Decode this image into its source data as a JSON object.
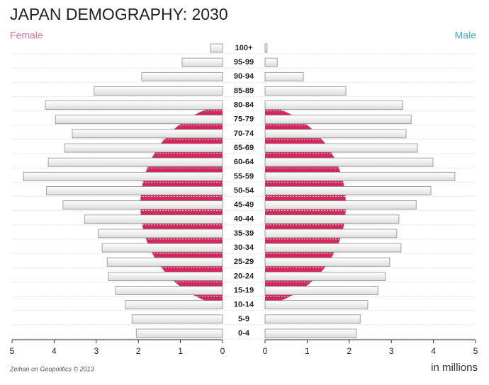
{
  "chart_data": {
    "type": "pyramid",
    "title": "JAPAN DEMOGRAPHY: 2030",
    "categories": [
      "100+",
      "95-99",
      "90-94",
      "85-89",
      "80-84",
      "75-79",
      "70-74",
      "65-69",
      "60-64",
      "55-59",
      "50-54",
      "45-49",
      "40-44",
      "35-39",
      "30-34",
      "25-29",
      "20-24",
      "15-19",
      "10-14",
      "5-9",
      "0-4"
    ],
    "series": [
      {
        "name": "Female",
        "color": "#e2719e",
        "values": [
          0.29,
          0.96,
          1.92,
          3.05,
          4.21,
          3.97,
          3.57,
          3.75,
          4.14,
          4.73,
          4.18,
          3.79,
          3.28,
          2.95,
          2.86,
          2.74,
          2.71,
          2.54,
          2.31,
          2.15,
          2.05
        ]
      },
      {
        "name": "Male",
        "color": "#3bb4c1",
        "values": [
          0.05,
          0.29,
          0.91,
          1.92,
          3.27,
          3.47,
          3.35,
          3.62,
          3.99,
          4.51,
          3.94,
          3.59,
          3.18,
          3.13,
          3.23,
          2.96,
          2.86,
          2.68,
          2.44,
          2.26,
          2.17
        ]
      }
    ],
    "bar_color": "#f1f1f1",
    "xlim": [
      0,
      5
    ],
    "xticks": [
      0,
      1,
      2,
      3,
      4,
      5
    ],
    "x_label": "in millions",
    "source": "Zeihan on Geopolitics © 2013"
  }
}
